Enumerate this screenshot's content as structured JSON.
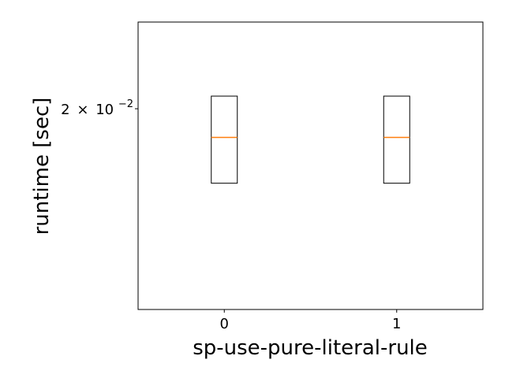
{
  "chart_data": {
    "type": "box",
    "title": "",
    "xlabel": "sp-use-pure-literal-rule",
    "ylabel": "runtime [sec]",
    "yscale": "log",
    "ylim": [
      0.0125,
      0.0245
    ],
    "y_tick_label": {
      "mantissa": "2",
      "times": "×",
      "base": "10",
      "exponent": "−2"
    },
    "y_tick_value": 0.02,
    "categories": [
      "0",
      "1"
    ],
    "category_colors": [
      "#ff0000",
      "#000000"
    ],
    "boxes": [
      {
        "category": "0",
        "q1": 0.0168,
        "median": 0.0187,
        "q3": 0.0206
      },
      {
        "category": "1",
        "q1": 0.0168,
        "median": 0.0187,
        "q3": 0.0206
      }
    ],
    "box_color": "#000000",
    "median_color": "#ff7f0e",
    "grid": false,
    "legend": "none"
  }
}
